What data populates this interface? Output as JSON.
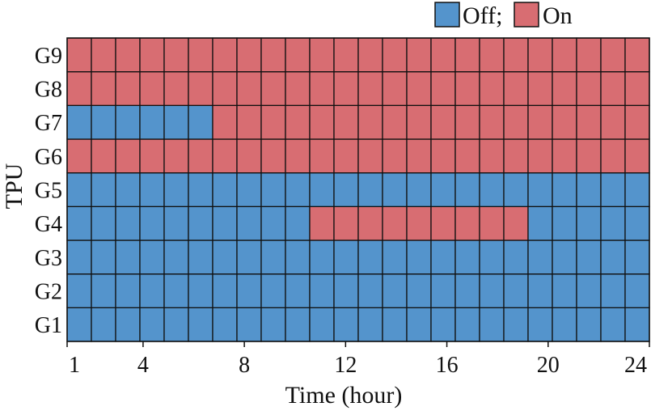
{
  "chart_data": {
    "type": "heatmap",
    "title": "",
    "xlabel": "Time (hour)",
    "ylabel": "TPU",
    "x": [
      1,
      2,
      3,
      4,
      5,
      6,
      7,
      8,
      9,
      10,
      11,
      12,
      13,
      14,
      15,
      16,
      17,
      18,
      19,
      20,
      21,
      22,
      23,
      24
    ],
    "x_ticks": [
      1,
      4,
      8,
      12,
      16,
      20,
      24
    ],
    "x_tick_labels": [
      "1",
      "4",
      "8",
      "12",
      "16",
      "20",
      "24"
    ],
    "y_categories": [
      "G1",
      "G2",
      "G3",
      "G4",
      "G5",
      "G6",
      "G7",
      "G8",
      "G9"
    ],
    "legend": {
      "position": "top-right",
      "items": [
        {
          "label": "Off;",
          "value": 0,
          "color": "#5494cc"
        },
        {
          "label": "On",
          "value": 1,
          "color": "#d86d72"
        }
      ]
    },
    "grid": true,
    "status_matrix": [
      [
        0,
        0,
        0,
        0,
        0,
        0,
        0,
        0,
        0,
        0,
        0,
        0,
        0,
        0,
        0,
        0,
        0,
        0,
        0,
        0,
        0,
        0,
        0,
        0
      ],
      [
        0,
        0,
        0,
        0,
        0,
        0,
        0,
        0,
        0,
        0,
        0,
        0,
        0,
        0,
        0,
        0,
        0,
        0,
        0,
        0,
        0,
        0,
        0,
        0
      ],
      [
        0,
        0,
        0,
        0,
        0,
        0,
        0,
        0,
        0,
        0,
        0,
        0,
        0,
        0,
        0,
        0,
        0,
        0,
        0,
        0,
        0,
        0,
        0,
        0
      ],
      [
        0,
        0,
        0,
        0,
        0,
        0,
        0,
        0,
        0,
        0,
        1,
        1,
        1,
        1,
        1,
        1,
        1,
        1,
        1,
        0,
        0,
        0,
        0,
        0
      ],
      [
        0,
        0,
        0,
        0,
        0,
        0,
        0,
        0,
        0,
        0,
        0,
        0,
        0,
        0,
        0,
        0,
        0,
        0,
        0,
        0,
        0,
        0,
        0,
        0
      ],
      [
        1,
        1,
        1,
        1,
        1,
        1,
        1,
        1,
        1,
        1,
        1,
        1,
        1,
        1,
        1,
        1,
        1,
        1,
        1,
        1,
        1,
        1,
        1,
        1
      ],
      [
        0,
        0,
        0,
        0,
        0,
        0,
        1,
        1,
        1,
        1,
        1,
        1,
        1,
        1,
        1,
        1,
        1,
        1,
        1,
        1,
        1,
        1,
        1,
        1
      ],
      [
        1,
        1,
        1,
        1,
        1,
        1,
        1,
        1,
        1,
        1,
        1,
        1,
        1,
        1,
        1,
        1,
        1,
        1,
        1,
        1,
        1,
        1,
        1,
        1
      ],
      [
        1,
        1,
        1,
        1,
        1,
        1,
        1,
        1,
        1,
        1,
        1,
        1,
        1,
        1,
        1,
        1,
        1,
        1,
        1,
        1,
        1,
        1,
        1,
        1
      ]
    ]
  }
}
